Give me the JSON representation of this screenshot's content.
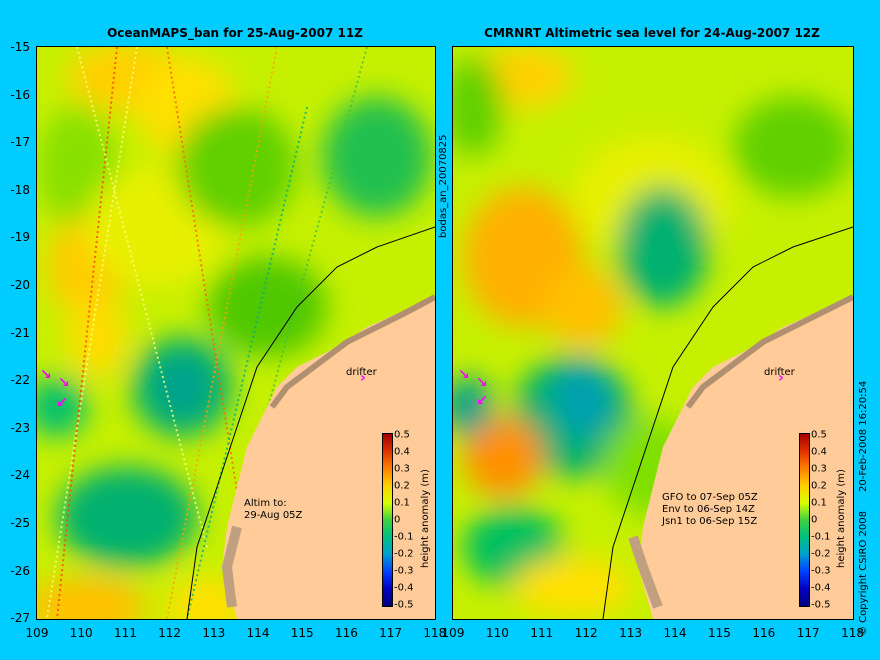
{
  "left_panel": {
    "title": "OceanMAPS_ban for 25-Aug-2007 11Z",
    "side_label": "bodas_an_20070825",
    "altim_label": "Altim to:\n29-Aug 05Z",
    "drifter_label": "drifter"
  },
  "right_panel": {
    "title": "CMRNRT Altimetric sea level  for 24-Aug-2007 12Z",
    "drifter_label": "drifter",
    "satellite_info": "GFO to 07-Sep 05Z\nEnv to 06-Sep 14Z\nJsn1 to 06-Sep 15Z",
    "side_label": "20-Feb-2008 16:20:54",
    "copyright": "© Copyright CSIRO 2008"
  },
  "axes": {
    "latitudes": [
      "-15",
      "-16",
      "-17",
      "-18",
      "-19",
      "-20",
      "-21",
      "-22",
      "-23",
      "-24",
      "-25",
      "-26",
      "-27"
    ],
    "longitudes": [
      "109",
      "110",
      "111",
      "112",
      "113",
      "114",
      "115",
      "116",
      "117",
      "118"
    ]
  },
  "colorbar": {
    "label": "height anomaly (m)",
    "ticks": [
      "0.5",
      "0.4",
      "0.3",
      "0.2",
      "0.1",
      "0",
      "-0.1",
      "-0.2",
      "-0.3",
      "-0.4",
      "-0.5"
    ],
    "range": [
      -0.5,
      0.5
    ]
  },
  "colors": {
    "background": "#00ccff",
    "land": "#ffcc99",
    "arrow": "#ff00ff",
    "coast_shelf": "#c0a080"
  }
}
